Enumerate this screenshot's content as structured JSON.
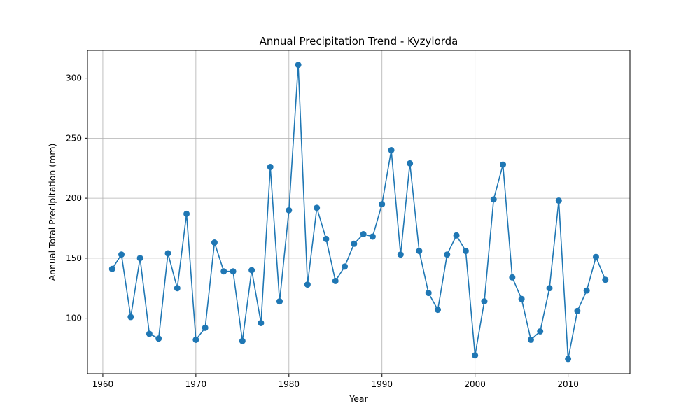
{
  "chart_data": {
    "type": "line",
    "title": "Annual Precipitation Trend - Kyzylorda",
    "xlabel": "Year",
    "ylabel": "Annual Total Precipitation (mm)",
    "xlim": [
      1958.35,
      2016.65
    ],
    "ylim": [
      53.7,
      323.1
    ],
    "xticks": [
      1960,
      1970,
      1980,
      1990,
      2000,
      2010
    ],
    "yticks": [
      100,
      150,
      200,
      250,
      300
    ],
    "grid": true,
    "series": [
      {
        "color": "#1f77b4",
        "marker": "circle",
        "x": [
          1961,
          1962,
          1963,
          1964,
          1965,
          1966,
          1967,
          1968,
          1969,
          1970,
          1971,
          1972,
          1973,
          1974,
          1975,
          1976,
          1977,
          1978,
          1979,
          1980,
          1981,
          1982,
          1983,
          1984,
          1985,
          1986,
          1987,
          1988,
          1989,
          1990,
          1991,
          1992,
          1993,
          1994,
          1995,
          1996,
          1997,
          1998,
          1999,
          2000,
          2001,
          2002,
          2003,
          2004,
          2005,
          2006,
          2007,
          2008,
          2009,
          2010,
          2011,
          2012,
          2013,
          2014
        ],
        "y": [
          141,
          153,
          101,
          150,
          87,
          83,
          154,
          125,
          187,
          82,
          92,
          163,
          139,
          139,
          81,
          140,
          96,
          226,
          114,
          190,
          311,
          128,
          192,
          166,
          131,
          143,
          162,
          170,
          168,
          195,
          240,
          153,
          229,
          156,
          121,
          107,
          153,
          169,
          156,
          69,
          114,
          199,
          228,
          134,
          116,
          82,
          89,
          125,
          198,
          66,
          106,
          123,
          151,
          132
        ]
      }
    ]
  }
}
